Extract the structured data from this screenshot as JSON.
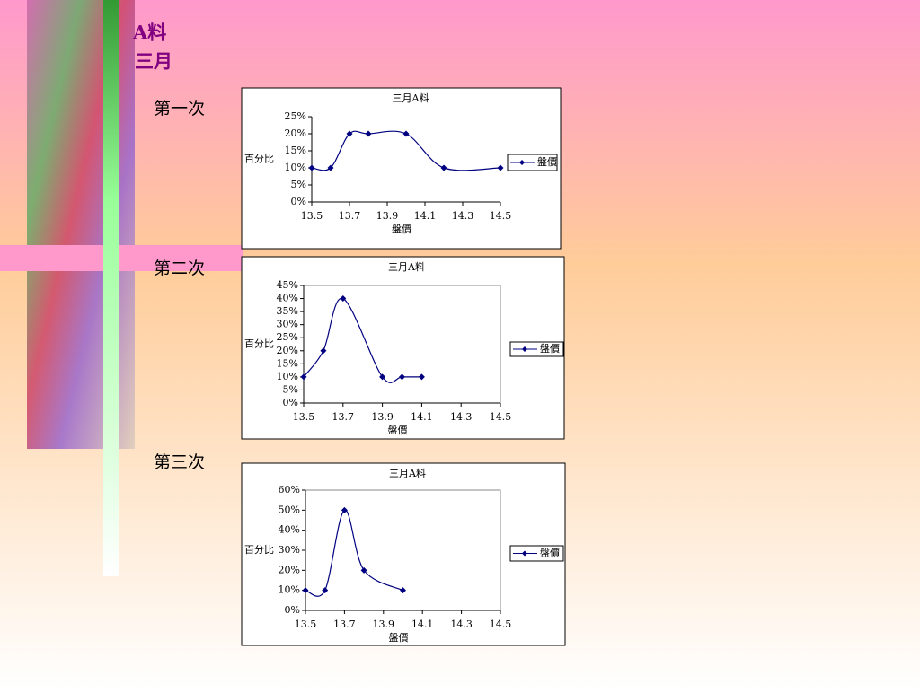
{
  "header": {
    "line1": "A料",
    "line2": "三月"
  },
  "sections": [
    "第一次",
    "第二次",
    "第三次"
  ],
  "chart_data": [
    {
      "type": "line",
      "title": "三月A料",
      "x_label": "盤價",
      "y_label": "百分比",
      "legend": "right",
      "plot_border": false,
      "series": [
        {
          "name": "盤價",
          "color": "#000080",
          "x": [
            13.5,
            13.6,
            13.7,
            13.8,
            14.0,
            14.2,
            14.5
          ],
          "values": [
            10,
            10,
            20,
            20,
            20,
            10,
            10
          ]
        }
      ],
      "xlim": [
        13.5,
        14.5
      ],
      "xticks": [
        13.5,
        13.7,
        13.9,
        14.1,
        14.3,
        14.5
      ],
      "ylim": [
        0,
        25
      ],
      "yticks": [
        {
          "value": 0,
          "label": "0%"
        },
        {
          "value": 5,
          "label": "5%"
        },
        {
          "value": 10,
          "label": "10%"
        },
        {
          "value": 15,
          "label": "15%"
        },
        {
          "value": 20,
          "label": "20%"
        },
        {
          "value": 25,
          "label": "25%"
        }
      ]
    },
    {
      "type": "line",
      "title": "三月A料",
      "x_label": "盤價",
      "y_label": "百分比",
      "legend": "right",
      "plot_border": true,
      "series": [
        {
          "name": "盤價",
          "color": "#000080",
          "x": [
            13.5,
            13.6,
            13.7,
            13.9,
            14.0,
            14.1
          ],
          "values": [
            10,
            20,
            40,
            10,
            10,
            10
          ]
        }
      ],
      "xlim": [
        13.5,
        14.5
      ],
      "xticks": [
        13.5,
        13.7,
        13.9,
        14.1,
        14.3,
        14.5
      ],
      "ylim": [
        0,
        45
      ],
      "yticks": [
        {
          "value": 0,
          "label": "0%"
        },
        {
          "value": 5,
          "label": "5%"
        },
        {
          "value": 10,
          "label": "10%"
        },
        {
          "value": 15,
          "label": "15%"
        },
        {
          "value": 20,
          "label": "20%"
        },
        {
          "value": 25,
          "label": "25%"
        },
        {
          "value": 30,
          "label": "30%"
        },
        {
          "value": 35,
          "label": "35%"
        },
        {
          "value": 40,
          "label": "40%"
        },
        {
          "value": 45,
          "label": "45%"
        }
      ]
    },
    {
      "type": "line",
      "title": "三月A料",
      "x_label": "盤價",
      "y_label": "百分比",
      "legend": "right",
      "plot_border": true,
      "series": [
        {
          "name": "盤價",
          "color": "#000080",
          "x": [
            13.5,
            13.6,
            13.7,
            13.8,
            14.0
          ],
          "values": [
            10,
            10,
            50,
            20,
            10
          ]
        }
      ],
      "xlim": [
        13.5,
        14.5
      ],
      "xticks": [
        13.5,
        13.7,
        13.9,
        14.1,
        14.3,
        14.5
      ],
      "ylim": [
        0,
        60
      ],
      "yticks": [
        {
          "value": 0,
          "label": "0%"
        },
        {
          "value": 10,
          "label": "10%"
        },
        {
          "value": 20,
          "label": "20%"
        },
        {
          "value": 30,
          "label": "30%"
        },
        {
          "value": 40,
          "label": "40%"
        },
        {
          "value": 50,
          "label": "50%"
        },
        {
          "value": 60,
          "label": "60%"
        }
      ]
    }
  ]
}
